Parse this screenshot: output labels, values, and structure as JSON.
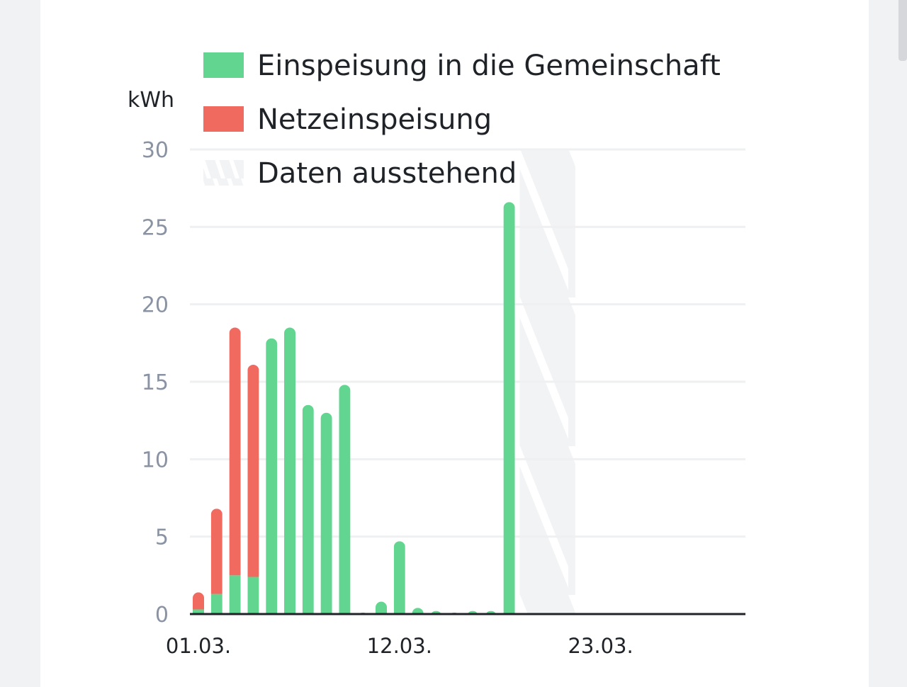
{
  "chart_data": {
    "type": "bar",
    "unit_label": "kWh",
    "ylim": [
      0,
      30
    ],
    "y_ticks": [
      "0",
      "5",
      "10",
      "15",
      "20",
      "25",
      "30"
    ],
    "x_ticks": [
      {
        "day": 1,
        "label": "01.03."
      },
      {
        "day": 12,
        "label": "12.03."
      },
      {
        "day": 23,
        "label": "23.03."
      }
    ],
    "days": 31,
    "grid": true,
    "legend": {
      "placement": "top",
      "items": [
        {
          "key": "community",
          "label": "Einspeisung in die Gemeinschaft",
          "color": "#62d690"
        },
        {
          "key": "grid",
          "label": "Netzeinspeisung",
          "color": "#f06a60"
        },
        {
          "key": "pending",
          "label": "Daten ausstehend",
          "color": "#f3f4f6"
        }
      ]
    },
    "pending_range": [
      19,
      21
    ],
    "series": [
      {
        "name": "Einspeisung in die Gemeinschaft",
        "color": "#62d690",
        "values": [
          0.3,
          1.3,
          2.5,
          2.4,
          17.8,
          18.5,
          13.5,
          13.0,
          14.8,
          0.1,
          0.8,
          4.7,
          0.4,
          0.2,
          0.1,
          0.2,
          0.2,
          26.6
        ]
      },
      {
        "name": "Netzeinspeisung",
        "color": "#f06a60",
        "values": [
          1.1,
          5.5,
          16.0,
          13.7,
          0,
          0,
          0,
          0,
          0,
          0,
          0,
          0,
          0,
          0,
          0,
          0,
          0,
          0
        ]
      }
    ]
  }
}
